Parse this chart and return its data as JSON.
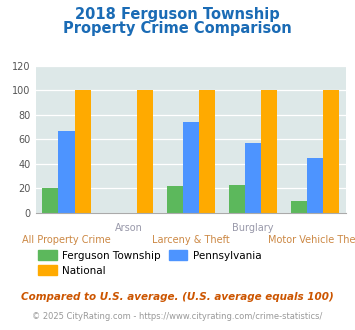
{
  "title_line1": "2018 Ferguson Township",
  "title_line2": "Property Crime Comparison",
  "categories": [
    "All Property Crime",
    "Arson",
    "Larceny & Theft",
    "Burglary",
    "Motor Vehicle Theft"
  ],
  "ferguson": [
    20,
    0,
    22,
    23,
    10
  ],
  "pennsylvania": [
    67,
    0,
    74,
    57,
    45
  ],
  "national": [
    100,
    100,
    100,
    100,
    100
  ],
  "colors": {
    "ferguson": "#5cb85c",
    "pennsylvania": "#4d94ff",
    "national": "#ffaa00"
  },
  "ylim": [
    0,
    120
  ],
  "yticks": [
    0,
    20,
    40,
    60,
    80,
    100,
    120
  ],
  "xlabel_top_indices": [
    1,
    3
  ],
  "xlabel_top_labels": [
    "Arson",
    "Burglary"
  ],
  "xlabel_bottom_indices": [
    0,
    2,
    4
  ],
  "xlabel_bottom_labels": [
    "All Property Crime",
    "Larceny & Theft",
    "Motor Vehicle Theft"
  ],
  "footnote1": "Compared to U.S. average. (U.S. average equals 100)",
  "footnote2": "© 2025 CityRating.com - https://www.cityrating.com/crime-statistics/",
  "bg_color": "#dde8e8",
  "title_color": "#1a6bb5",
  "xlabel_top_color": "#9999aa",
  "xlabel_bottom_color": "#cc8844",
  "footnote1_color": "#cc5500",
  "footnote2_color": "#999999",
  "legend_labels": [
    "Ferguson Township",
    "National",
    "Pennsylvania"
  ]
}
